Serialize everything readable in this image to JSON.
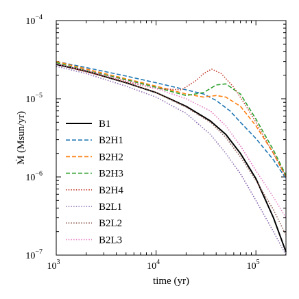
{
  "chart_data": {
    "type": "line",
    "xlabel": "time (yr)",
    "ylabel": "Ṁ (Msun/yr)",
    "xscale": "log",
    "yscale": "log",
    "xlim": [
      1000,
      200000
    ],
    "ylim": [
      1e-07,
      0.0001
    ],
    "x_ticks": [
      {
        "value": 1000,
        "mantissa": "10",
        "exp": "3"
      },
      {
        "value": 10000,
        "mantissa": "10",
        "exp": "4"
      },
      {
        "value": 100000,
        "mantissa": "10",
        "exp": "5"
      }
    ],
    "y_ticks": [
      {
        "value": 1e-07,
        "mantissa": "10",
        "exp": "−7"
      },
      {
        "value": 1e-06,
        "mantissa": "10",
        "exp": "−6"
      },
      {
        "value": 1e-05,
        "mantissa": "10",
        "exp": "−5"
      },
      {
        "value": 0.0001,
        "mantissa": "10",
        "exp": "−4"
      }
    ],
    "grid": false,
    "legend_position": "center-left",
    "series": [
      {
        "name": "B1",
        "color": "#000000",
        "style": "solid",
        "x": [
          1000,
          2000,
          5000,
          10000,
          20000,
          35000,
          50000,
          70000,
          100000,
          150000,
          200000
        ],
        "y": [
          2.75e-05,
          2.25e-05,
          1.6e-05,
          1.2e-05,
          8e-06,
          5.2e-06,
          3.5e-06,
          2e-06,
          9.5e-07,
          3e-07,
          1.1e-07
        ]
      },
      {
        "name": "B2H1",
        "color": "#1f77b4",
        "style": "dashed",
        "x": [
          1000,
          2000,
          5000,
          10000,
          20000,
          30000,
          40000,
          55000,
          70000,
          100000,
          150000,
          200000
        ],
        "y": [
          3e-05,
          2.5e-05,
          1.95e-05,
          1.6e-05,
          1.3e-05,
          1.15e-05,
          9.5e-06,
          7e-06,
          5e-06,
          3.1e-06,
          1.65e-06,
          9.5e-07
        ]
      },
      {
        "name": "B2H2",
        "color": "#ff7f0e",
        "style": "dashed",
        "x": [
          1000,
          2000,
          5000,
          10000,
          20000,
          30000,
          40000,
          50000,
          70000,
          100000,
          150000,
          200000
        ],
        "y": [
          3e-05,
          2.4e-05,
          1.8e-05,
          1.45e-05,
          1.15e-05,
          1.05e-05,
          1.1e-05,
          1.05e-05,
          8e-06,
          4.5e-06,
          2e-06,
          1e-06
        ]
      },
      {
        "name": "B2H3",
        "color": "#2ca02c",
        "style": "dashed",
        "x": [
          1000,
          2000,
          5000,
          10000,
          20000,
          30000,
          40000,
          50000,
          70000,
          100000,
          150000,
          200000
        ],
        "y": [
          2.9e-05,
          2.3e-05,
          1.75e-05,
          1.4e-05,
          1.1e-05,
          1.2e-05,
          1.5e-05,
          1.55e-05,
          1.15e-05,
          5.5e-06,
          2.2e-06,
          1.05e-06
        ]
      },
      {
        "name": "B2H4",
        "color": "#c0392b",
        "style": "dotted",
        "x": [
          1000,
          2000,
          5000,
          10000,
          18000,
          25000,
          30000,
          36000,
          45000,
          60000,
          80000,
          100000,
          150000,
          200000
        ],
        "y": [
          2.8e-05,
          2.2e-05,
          1.65e-05,
          1.35e-05,
          1.3e-05,
          1.7e-05,
          2.1e-05,
          2.4e-05,
          2.1e-05,
          1.4e-05,
          8e-06,
          5e-06,
          2e-06,
          1e-06
        ]
      },
      {
        "name": "B2L1",
        "color": "#8c6bb1",
        "style": "dotted",
        "x": [
          1000,
          2000,
          5000,
          10000,
          20000,
          35000,
          50000,
          70000,
          100000,
          150000,
          200000
        ],
        "y": [
          2.6e-05,
          2.1e-05,
          1.45e-05,
          1.05e-05,
          6.5e-06,
          3.5e-06,
          2e-06,
          1.1e-06,
          5e-07,
          2e-07,
          1e-07
        ]
      },
      {
        "name": "B2L2",
        "color": "#8c564b",
        "style": "dotted",
        "x": [
          1000,
          2000,
          5000,
          10000,
          20000,
          35000,
          50000,
          70000,
          100000,
          150000,
          200000
        ],
        "y": [
          2.8e-05,
          2.3e-05,
          1.6e-05,
          1.2e-05,
          7.8e-06,
          5e-06,
          3.2e-06,
          1.8e-06,
          9e-07,
          3.8e-07,
          1.8e-07
        ]
      },
      {
        "name": "B2L3",
        "color": "#e377c2",
        "style": "dotted",
        "x": [
          1000,
          2000,
          5000,
          10000,
          20000,
          35000,
          50000,
          70000,
          100000,
          150000,
          200000
        ],
        "y": [
          2.8e-05,
          2.3e-05,
          1.7e-05,
          1.35e-05,
          1e-05,
          7e-06,
          4.5e-06,
          2.5e-06,
          1.2e-06,
          5.5e-07,
          3e-07
        ]
      }
    ]
  }
}
